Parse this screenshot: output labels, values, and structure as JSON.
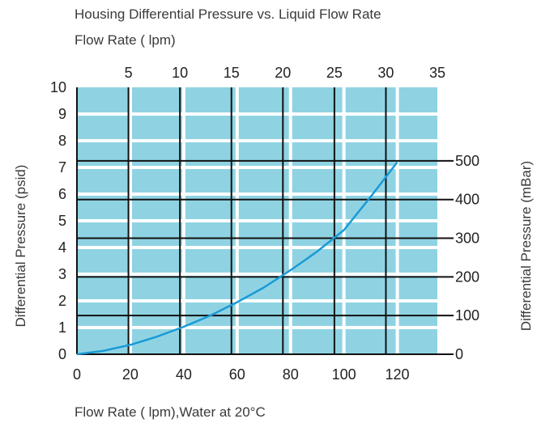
{
  "chart_data": {
    "type": "line",
    "title": "Housing Differential Pressure vs. Liquid Flow Rate",
    "xlabel": "Flow Rate ( lpm),Water at 20°C",
    "x2label": "Flow Rate ( lpm)",
    "ylabel": "Differential Pressure (psid)",
    "y2label": "Differential Pressure (mBar)",
    "xlim": [
      0,
      135
    ],
    "x2lim": [
      0,
      35
    ],
    "ylim": [
      0,
      10
    ],
    "y2lim": [
      0,
      690
    ],
    "x_ticks": [
      "0",
      "20",
      "40",
      "60",
      "80",
      "100",
      "120"
    ],
    "x_tick_values": [
      0,
      20,
      40,
      60,
      80,
      100,
      120
    ],
    "x2_ticks": [
      "5",
      "10",
      "15",
      "20",
      "25",
      "30",
      "35"
    ],
    "x2_tick_values": [
      5,
      10,
      15,
      20,
      25,
      30,
      35
    ],
    "y_ticks": [
      "0",
      "1",
      "2",
      "3",
      "4",
      "5",
      "6",
      "7",
      "8",
      "9",
      "10"
    ],
    "y_tick_values": [
      0,
      1,
      2,
      3,
      4,
      5,
      6,
      7,
      8,
      9,
      10
    ],
    "y2_ticks": [
      "0",
      "100",
      "200",
      "300",
      "400",
      "500"
    ],
    "y2_tick_values": [
      0,
      100,
      200,
      300,
      400,
      500
    ],
    "grid": true,
    "series": [
      {
        "x": [
          0,
          10,
          20,
          30,
          40,
          50,
          60,
          70,
          80,
          90,
          100,
          110,
          120
        ],
        "y": [
          0,
          0.13,
          0.35,
          0.66,
          1.03,
          1.45,
          1.95,
          2.5,
          3.15,
          3.85,
          4.65,
          5.9,
          7.2
        ]
      }
    ],
    "colors": {
      "plot_background": "#8fd3e3",
      "grid_minor": "#ffffff",
      "grid_major": "#111111",
      "curve": "#1a9ad6"
    }
  }
}
